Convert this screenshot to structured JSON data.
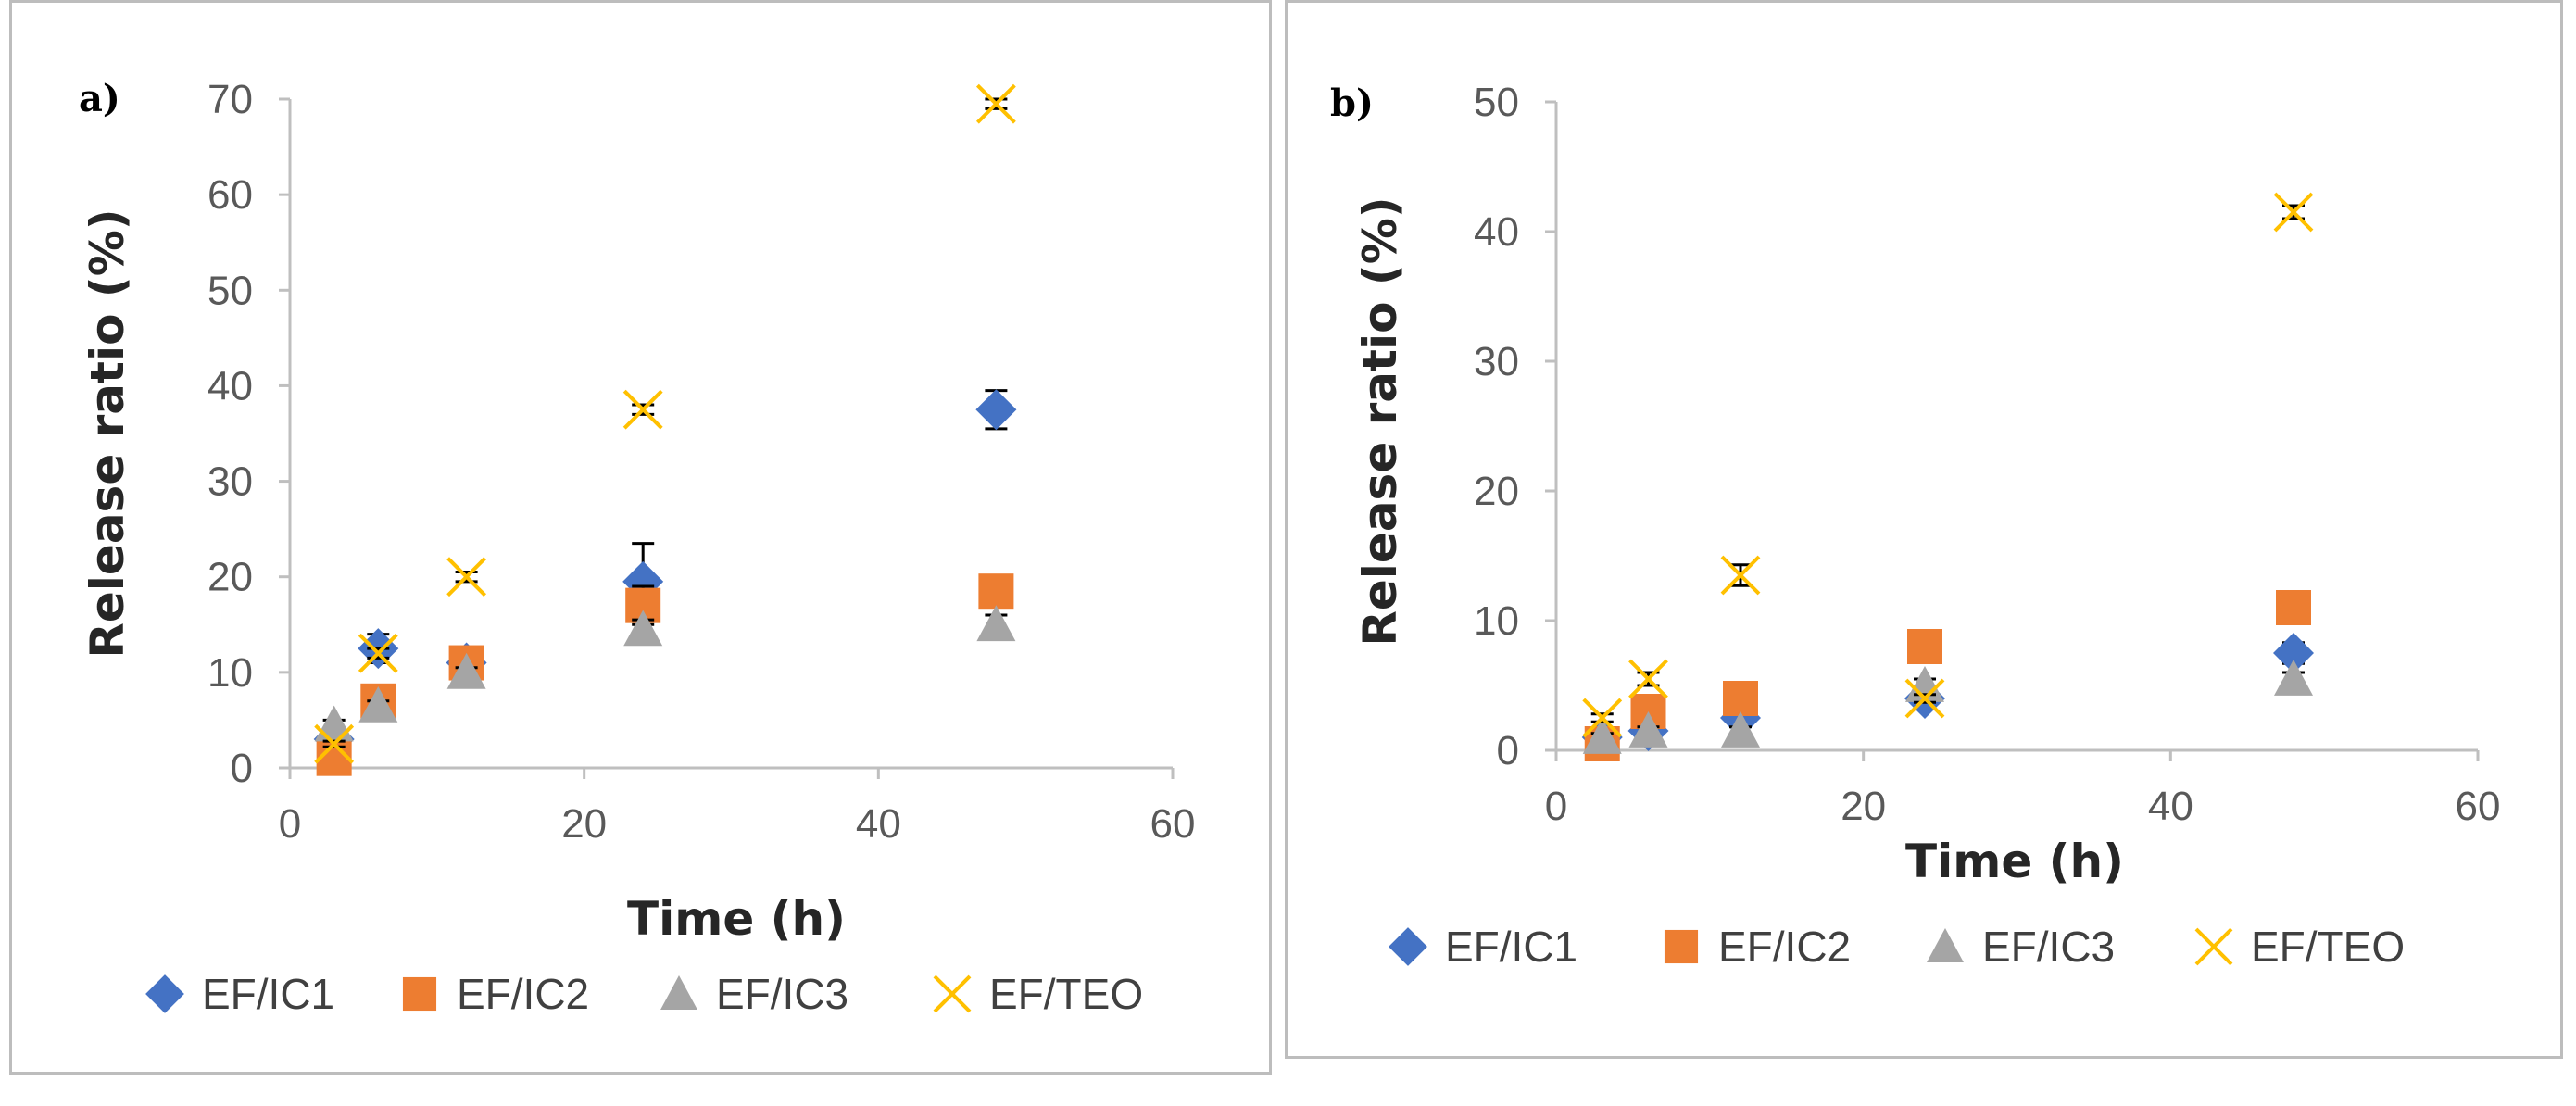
{
  "colors": {
    "EF/IC1": "#4472C4",
    "EF/IC2": "#ED7D31",
    "EF/IC3": "#A5A5A5",
    "EF/TEO": "#FFC000",
    "axis": "#bfbfbf",
    "error_bar": "#000000"
  },
  "chart_data": [
    {
      "panel_label": "a)",
      "type": "scatter",
      "xlabel": "Time (h)",
      "ylabel": "Release ratio (%)",
      "xlim": [
        0,
        60
      ],
      "ylim": [
        0,
        70
      ],
      "xticks": [
        0,
        20,
        40,
        60
      ],
      "yticks": [
        0,
        10,
        20,
        30,
        40,
        50,
        60,
        70
      ],
      "legend_position": "bottom",
      "series": [
        {
          "name": "EF/IC1",
          "marker": "diamond",
          "x": [
            3,
            6,
            12,
            24,
            48
          ],
          "y": [
            3,
            12.5,
            11,
            19.5,
            37.5
          ],
          "err": [
            1,
            1.5,
            1,
            4,
            2
          ]
        },
        {
          "name": "EF/IC2",
          "marker": "square",
          "x": [
            3,
            6,
            12,
            24,
            48
          ],
          "y": [
            1,
            7,
            11,
            17,
            18.5
          ],
          "err": [
            0.5,
            1,
            1,
            2,
            1.5
          ]
        },
        {
          "name": "EF/IC3",
          "marker": "triangle",
          "x": [
            3,
            6,
            12,
            24,
            48
          ],
          "y": [
            4.5,
            6.5,
            10,
            14.5,
            15
          ],
          "err": [
            0.5,
            0.5,
            0.5,
            1,
            1
          ]
        },
        {
          "name": "EF/TEO",
          "marker": "x",
          "x": [
            3,
            6,
            12,
            24,
            48
          ],
          "y": [
            2.5,
            12,
            20,
            37.5,
            69.5
          ],
          "err": [
            0.3,
            0.5,
            0.5,
            0.5,
            0.5
          ]
        }
      ]
    },
    {
      "panel_label": "b)",
      "type": "scatter",
      "xlabel": "Time (h)",
      "ylabel": "Release ratio (%)",
      "xlim": [
        0,
        60
      ],
      "ylim": [
        0,
        50
      ],
      "xticks": [
        0,
        20,
        40,
        60
      ],
      "yticks": [
        0,
        10,
        20,
        30,
        40,
        50
      ],
      "legend_position": "bottom",
      "series": [
        {
          "name": "EF/IC1",
          "marker": "diamond",
          "x": [
            3,
            6,
            12,
            24,
            48
          ],
          "y": [
            1,
            1.5,
            2.5,
            4,
            7.5
          ],
          "err": [
            0.3,
            0.5,
            0.5,
            0.5,
            0.8
          ]
        },
        {
          "name": "EF/IC2",
          "marker": "square",
          "x": [
            3,
            6,
            12,
            24,
            48
          ],
          "y": [
            0.5,
            3,
            4,
            8,
            11
          ],
          "err": [
            0.3,
            0.5,
            0.5,
            0.5,
            0.5
          ]
        },
        {
          "name": "EF/IC3",
          "marker": "triangle",
          "x": [
            3,
            6,
            12,
            24,
            48
          ],
          "y": [
            1,
            1.5,
            1.5,
            5,
            5.5
          ],
          "err": [
            0.3,
            0.3,
            0.3,
            0.5,
            0.5
          ]
        },
        {
          "name": "EF/TEO",
          "marker": "x",
          "x": [
            3,
            6,
            12,
            24,
            48
          ],
          "y": [
            2.5,
            5.5,
            13.5,
            4,
            41.5
          ],
          "err": [
            0.3,
            0.5,
            0.8,
            0.3,
            0.5
          ]
        }
      ]
    }
  ]
}
